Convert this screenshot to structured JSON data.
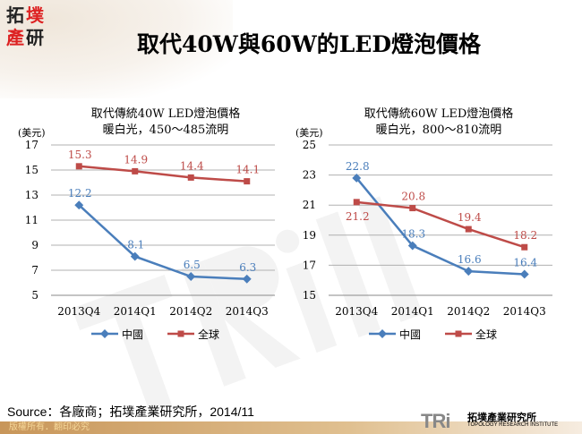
{
  "header": {
    "title": "取代40W與60W的LED燈泡價格",
    "logo_text": [
      "拓",
      "墣",
      "產",
      "研"
    ]
  },
  "colors": {
    "china": "#4a7ebb",
    "global": "#be4b48",
    "footer": "#c8965a"
  },
  "chart_data": [
    {
      "type": "line",
      "title": "取代傳統40W LED燈泡價格",
      "subtitle": "暖白光，450～485流明",
      "ylabel": "(美元)",
      "categories": [
        "2013Q4",
        "2014Q1",
        "2014Q2",
        "2014Q3"
      ],
      "ylim": [
        5,
        17
      ],
      "yticks": [
        "5",
        "7",
        "9",
        "11",
        "13",
        "15",
        "17"
      ],
      "grid": true,
      "legend": "bottom",
      "series": [
        {
          "name": "中國",
          "values": [
            12.2,
            8.1,
            6.5,
            6.3
          ],
          "labels": [
            "12.2",
            "8.1",
            "6.5",
            "6.3"
          ]
        },
        {
          "name": "全球",
          "values": [
            15.3,
            14.9,
            14.4,
            14.1
          ],
          "labels": [
            "15.3",
            "14.9",
            "14.4",
            "14.1"
          ]
        }
      ]
    },
    {
      "type": "line",
      "title": "取代傳統60W LED燈泡價格",
      "subtitle": "暖白光，800～810流明",
      "ylabel": "(美元)",
      "categories": [
        "2013Q4",
        "2014Q1",
        "2014Q2",
        "2014Q3"
      ],
      "ylim": [
        15,
        25
      ],
      "yticks": [
        "15",
        "17",
        "19",
        "21",
        "23",
        "25"
      ],
      "grid": true,
      "legend": "bottom",
      "series": [
        {
          "name": "中國",
          "values": [
            22.8,
            18.3,
            16.6,
            16.4
          ],
          "labels": [
            "22.8",
            "18.3",
            "16.6",
            "16.4"
          ]
        },
        {
          "name": "全球",
          "values": [
            21.2,
            20.8,
            19.4,
            18.2
          ],
          "labels": [
            "21.2",
            "20.8",
            "19.4",
            "18.2"
          ]
        }
      ]
    }
  ],
  "source": "Source：各廠商；拓墣產業研究所，2014/11",
  "footer": {
    "copyright": "版權所有．翻印必究",
    "org_mark": "TRi",
    "org_cn": "拓墣產業研究所",
    "org_en": "TOPOLOGY RESEARCH INSTITUTE"
  }
}
